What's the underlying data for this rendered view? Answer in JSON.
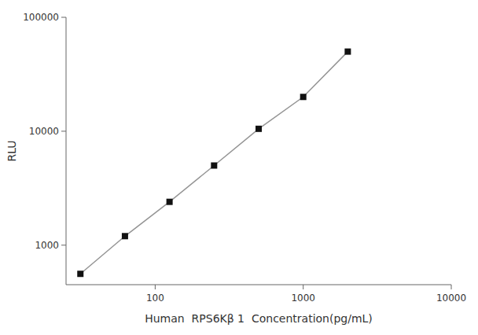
{
  "chart_data": {
    "type": "line",
    "marker": "square",
    "color": "#111111",
    "log": true,
    "grid": false,
    "xlabel": "Human  RPS6Kβ 1  Concentration(pg/mL)",
    "ylabel": "RLU",
    "x": [
      31.25,
      62.5,
      125,
      250,
      500,
      1000,
      2000
    ],
    "values": [
      560,
      1200,
      2400,
      5000,
      10500,
      20000,
      50000
    ],
    "xlim": [
      25,
      10000
    ],
    "ylim": [
      450,
      100000
    ],
    "xticks": [
      100,
      1000,
      10000
    ],
    "yticks": [
      1000,
      10000,
      100000
    ]
  }
}
